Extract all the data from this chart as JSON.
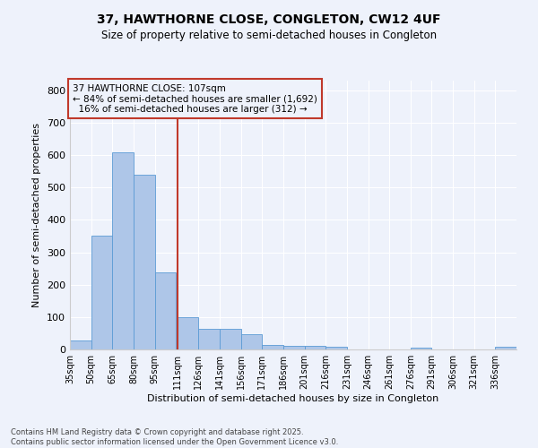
{
  "title": "37, HAWTHORNE CLOSE, CONGLETON, CW12 4UF",
  "subtitle": "Size of property relative to semi-detached houses in Congleton",
  "xlabel": "Distribution of semi-detached houses by size in Congleton",
  "ylabel": "Number of semi-detached properties",
  "footer_line1": "Contains HM Land Registry data © Crown copyright and database right 2025.",
  "footer_line2": "Contains public sector information licensed under the Open Government Licence v3.0.",
  "annotation_title": "37 HAWTHORNE CLOSE: 107sqm",
  "annotation_line2": "← 84% of semi-detached houses are smaller (1,692)",
  "annotation_line3": "16% of semi-detached houses are larger (312) →",
  "bar_categories": [
    "35sqm",
    "50sqm",
    "65sqm",
    "80sqm",
    "95sqm",
    "111sqm",
    "126sqm",
    "141sqm",
    "156sqm",
    "171sqm",
    "186sqm",
    "201sqm",
    "216sqm",
    "231sqm",
    "246sqm",
    "261sqm",
    "276sqm",
    "291sqm",
    "306sqm",
    "321sqm",
    "336sqm"
  ],
  "bar_edges": [
    35,
    50,
    65,
    80,
    95,
    111,
    126,
    141,
    156,
    171,
    186,
    201,
    216,
    231,
    246,
    261,
    276,
    291,
    306,
    321,
    336
  ],
  "bar_heights": [
    28,
    350,
    608,
    540,
    237,
    100,
    65,
    65,
    47,
    15,
    10,
    10,
    8,
    0,
    0,
    0,
    5,
    0,
    0,
    0,
    8
  ],
  "bar_color": "#aec6e8",
  "bar_edge_color": "#5b9bd5",
  "vline_color": "#c0392b",
  "vline_x": 111,
  "annotation_box_color": "#c0392b",
  "background_color": "#eef2fb",
  "ylim": [
    0,
    830
  ],
  "yticks": [
    0,
    100,
    200,
    300,
    400,
    500,
    600,
    700,
    800
  ],
  "figsize": [
    6.0,
    5.0
  ],
  "dpi": 100
}
